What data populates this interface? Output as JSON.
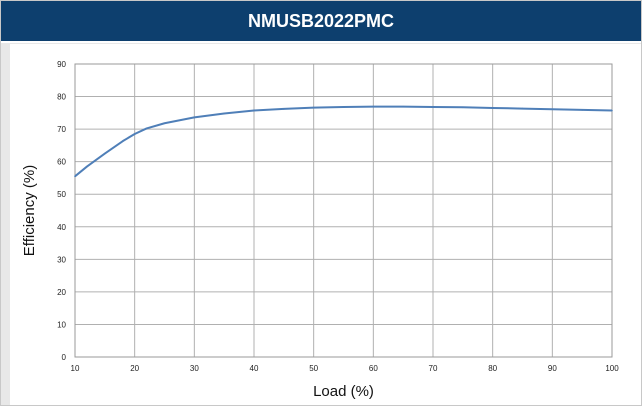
{
  "header": {
    "title": "NMUSB2022PMC"
  },
  "colors": {
    "header_bg": "#0d3f6e",
    "line": "#4f7fb8",
    "grid": "#b0b0b0"
  },
  "chart_data": {
    "type": "line",
    "title": "",
    "xlabel": "Load (%)",
    "ylabel": "Efficiency (%)",
    "xlim": [
      10,
      100
    ],
    "ylim": [
      0,
      90
    ],
    "xticks": [
      "10",
      "20",
      "30",
      "40",
      "50",
      "60",
      "70",
      "80",
      "90",
      "100"
    ],
    "yticks": [
      "0",
      "10",
      "20",
      "30",
      "40",
      "50",
      "60",
      "70",
      "80",
      "90"
    ],
    "grid": true,
    "series": [
      {
        "x": [
          10,
          12,
          15,
          18,
          20,
          22,
          25,
          30,
          35,
          40,
          45,
          50,
          55,
          60,
          65,
          70,
          75,
          80,
          85,
          90,
          95,
          100
        ],
        "y": [
          55.5,
          58.5,
          62.5,
          66.3,
          68.5,
          70.2,
          71.8,
          73.6,
          74.8,
          75.7,
          76.2,
          76.6,
          76.8,
          76.9,
          76.9,
          76.8,
          76.7,
          76.5,
          76.3,
          76.1,
          75.9,
          75.7
        ]
      }
    ]
  }
}
